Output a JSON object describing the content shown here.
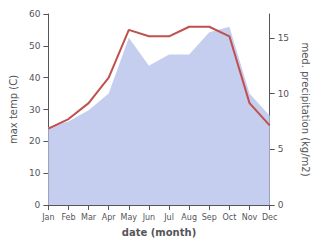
{
  "chart_data": {
    "type": "line",
    "xlabel": "date (month)",
    "ylabel": "max temp (C)",
    "y2label": "med. precipitation (kg/m2)",
    "categories": [
      "Jan",
      "Feb",
      "Mar",
      "Apr",
      "May",
      "Jun",
      "Jul",
      "Aug",
      "Sep",
      "Oct",
      "Nov",
      "Dec"
    ],
    "series": [
      {
        "type": "area",
        "color": "#c6cef0",
        "axis": "y2",
        "values": [
          7,
          7.5,
          8.5,
          10,
          15,
          12.5,
          13.5,
          13.5,
          15.5,
          16,
          10,
          8
        ]
      },
      {
        "type": "line",
        "color": "#c0504d",
        "values": [
          24,
          27,
          32,
          40,
          55,
          53,
          53,
          56,
          56,
          53,
          32,
          25
        ]
      }
    ],
    "ylim": [
      0,
      60
    ],
    "yticks": [
      0,
      10,
      20,
      30,
      40,
      50,
      60
    ],
    "y2lim": [
      0,
      17.14
    ],
    "y2ticks": [
      0,
      5,
      10,
      15
    ],
    "grid": false
  }
}
